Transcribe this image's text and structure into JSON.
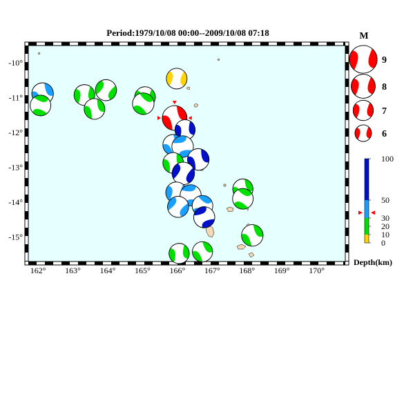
{
  "title": "Period:1979/10/08 00:00--2009/10/08 07:18",
  "map": {
    "lat_labels": [
      "-10°",
      "-11°",
      "-12°",
      "-13°",
      "-14°",
      "-15°"
    ],
    "lon_labels": [
      "162°",
      "163°",
      "164°",
      "165°",
      "166°",
      "167°",
      "168°",
      "169°",
      "170°"
    ],
    "ocean_color": "#e6ffff",
    "land_color": "#f5d9b5"
  },
  "magnitude_legend": {
    "title": "M",
    "items": [
      {
        "label": "9",
        "magnitude": 9
      },
      {
        "label": "8",
        "magnitude": 8
      },
      {
        "label": "7",
        "magnitude": 7
      },
      {
        "label": "6",
        "magnitude": 6
      }
    ],
    "color": "#ff0000"
  },
  "depth_legend": {
    "label": "Depth(km)",
    "ticks": [
      "100",
      "50",
      "30",
      "20",
      "10",
      "0"
    ],
    "bands": [
      {
        "from": 0,
        "to": 10,
        "color": "#ffd400"
      },
      {
        "from": 10,
        "to": 30,
        "color": "#00e000"
      },
      {
        "from": 30,
        "to": 50,
        "color": "#19a0ff"
      },
      {
        "from": 50,
        "to": 100,
        "color": "#0010c8"
      }
    ],
    "marker_depth": 36
  },
  "events": [
    {
      "lon": 162.13,
      "lat": -10.88,
      "mag": 6.5,
      "color": "#19a0ff",
      "rot": 10
    },
    {
      "lon": 162.07,
      "lat": -11.22,
      "mag": 6.3,
      "color": "#00e000",
      "rot": 140
    },
    {
      "lon": 163.33,
      "lat": -10.92,
      "mag": 6.3,
      "color": "#00e000",
      "rot": 35
    },
    {
      "lon": 163.95,
      "lat": -10.78,
      "mag": 6.4,
      "color": "#00e000",
      "rot": 65
    },
    {
      "lon": 163.62,
      "lat": -11.32,
      "mag": 6.3,
      "color": "#00e000",
      "rot": 15
    },
    {
      "lon": 165.07,
      "lat": -10.98,
      "mag": 6.3,
      "color": "#00e000",
      "rot": 40
    },
    {
      "lon": 165.02,
      "lat": -11.17,
      "mag": 6.5,
      "color": "#00e000",
      "rot": 160
    },
    {
      "lon": 165.98,
      "lat": -10.45,
      "mag": 6.3,
      "color": "#ffd400",
      "rot": 45
    },
    {
      "lon": 165.92,
      "lat": -11.58,
      "mag": 7.2,
      "color": "#ff0000",
      "rot": 10
    },
    {
      "lon": 166.22,
      "lat": -11.92,
      "mag": 6.2,
      "color": "#0010c8",
      "rot": 30
    },
    {
      "lon": 165.88,
      "lat": -12.35,
      "mag": 6.3,
      "color": "#19a0ff",
      "rot": 0
    },
    {
      "lon": 166.15,
      "lat": -12.4,
      "mag": 6.5,
      "color": "#19a0ff",
      "rot": 110
    },
    {
      "lon": 165.88,
      "lat": -12.87,
      "mag": 6.3,
      "color": "#00e000",
      "rot": 20
    },
    {
      "lon": 166.6,
      "lat": -12.77,
      "mag": 6.5,
      "color": "#0010c8",
      "rot": 15
    },
    {
      "lon": 166.17,
      "lat": -13.17,
      "mag": 6.7,
      "color": "#0010c8",
      "rot": 60
    },
    {
      "lon": 165.97,
      "lat": -13.72,
      "mag": 6.4,
      "color": "#19a0ff",
      "rot": 40
    },
    {
      "lon": 166.38,
      "lat": -13.8,
      "mag": 6.4,
      "color": "#19a0ff",
      "rot": 120
    },
    {
      "lon": 166.02,
      "lat": -14.13,
      "mag": 6.4,
      "color": "#19a0ff",
      "rot": 70
    },
    {
      "lon": 166.72,
      "lat": -14.1,
      "mag": 6.3,
      "color": "#19a0ff",
      "rot": 155
    },
    {
      "lon": 166.77,
      "lat": -14.43,
      "mag": 6.4,
      "color": "#0010c8",
      "rot": 100
    },
    {
      "lon": 167.88,
      "lat": -13.62,
      "mag": 6.2,
      "color": "#00e000",
      "rot": 10
    },
    {
      "lon": 167.88,
      "lat": -13.9,
      "mag": 6.3,
      "color": "#00e000",
      "rot": 150
    },
    {
      "lon": 168.15,
      "lat": -14.95,
      "mag": 6.5,
      "color": "#00e000",
      "rot": 5
    },
    {
      "lon": 166.05,
      "lat": -15.47,
      "mag": 6.2,
      "color": "#00e000",
      "rot": 30
    },
    {
      "lon": 166.72,
      "lat": -15.42,
      "mag": 6.2,
      "color": "#00e000",
      "rot": 0
    }
  ]
}
